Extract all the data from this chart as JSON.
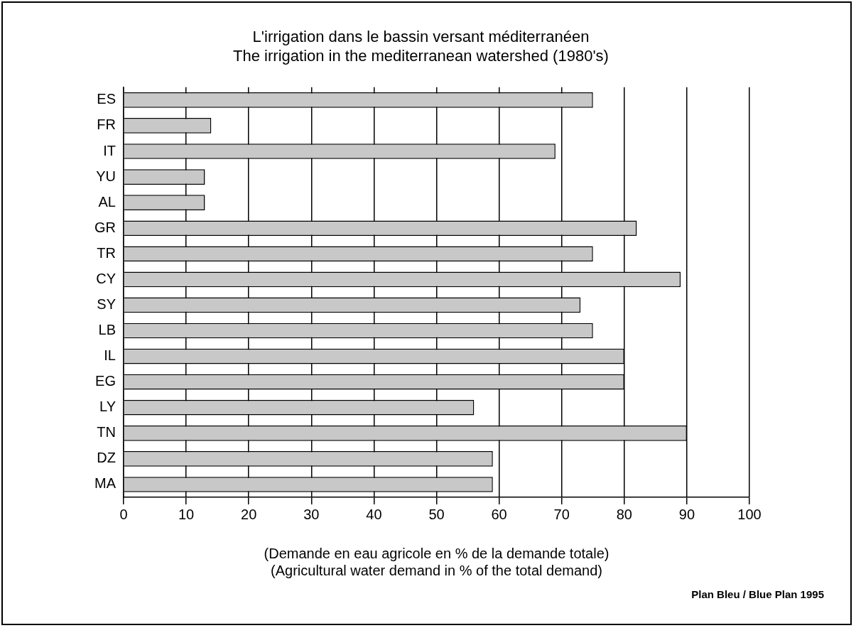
{
  "chart_data": {
    "type": "bar",
    "orientation": "horizontal",
    "title": "L'irrigation dans le bassin versant méditerranéen\nThe irrigation in the mediterranean watershed (1980's)",
    "xlabel": "(Demande en eau agricole en % de la demande totale)\n(Agricultural water demand in % of the total demand)",
    "categories": [
      "ES",
      "FR",
      "IT",
      "YU",
      "AL",
      "GR",
      "TR",
      "CY",
      "SY",
      "LB",
      "IL",
      "EG",
      "LY",
      "TN",
      "DZ",
      "MA"
    ],
    "values": [
      75,
      14,
      69,
      13,
      13,
      82,
      75,
      89,
      73,
      75,
      80,
      80,
      56,
      90,
      59,
      59
    ],
    "color": "#c8c8c8",
    "xlim": [
      0,
      100
    ],
    "xticks": [
      0,
      10,
      20,
      30,
      40,
      50,
      60,
      70,
      80,
      90,
      100
    ],
    "grid": "x",
    "legend": false,
    "annotations": [
      "Plan Bleu / Blue Plan 1995"
    ]
  }
}
